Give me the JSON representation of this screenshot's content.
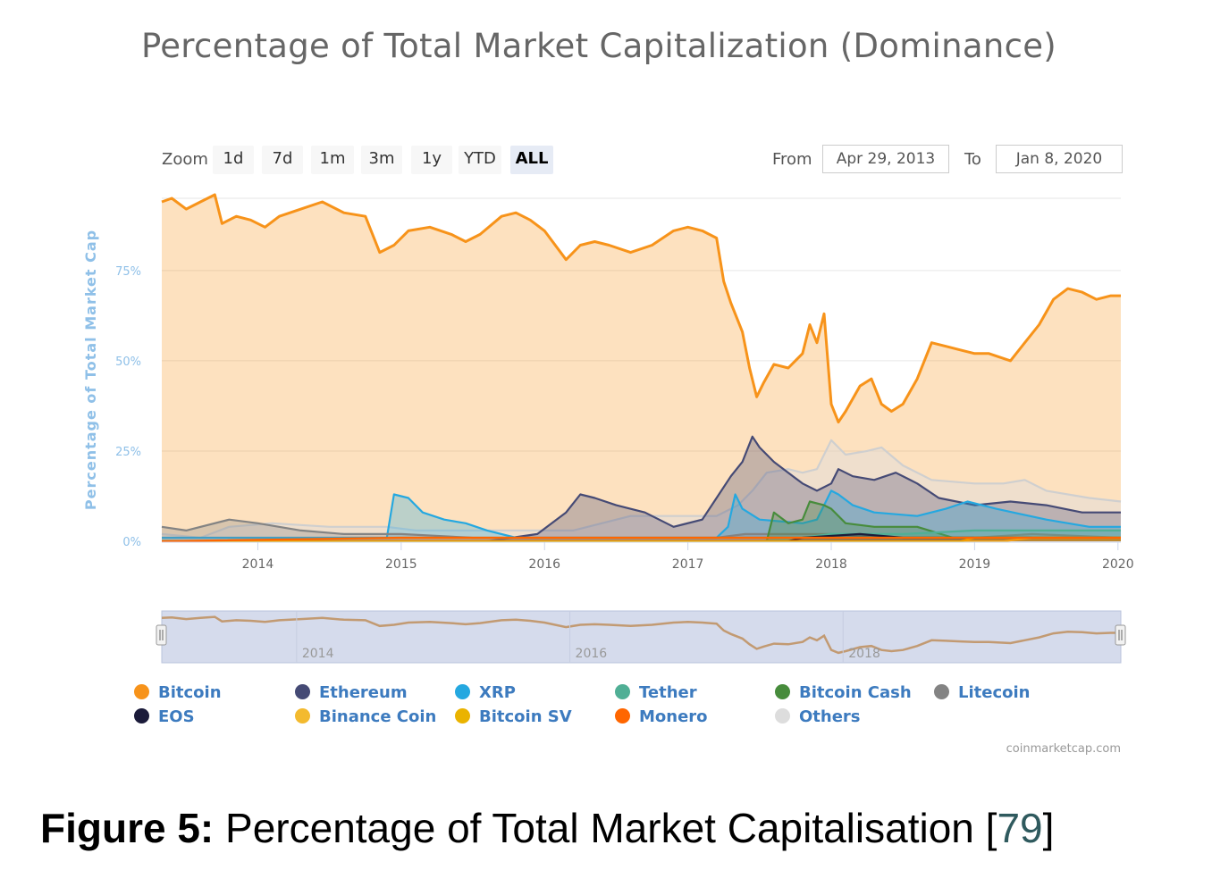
{
  "title": "Percentage of Total Market Capitalization (Dominance)",
  "toolbar": {
    "zoom_label": "Zoom",
    "buttons": [
      "1d",
      "7d",
      "1m",
      "3m",
      "1y",
      "YTD",
      "ALL"
    ],
    "active_button": "ALL",
    "from_label": "From",
    "from_value": "Apr 29, 2013",
    "to_label": "To",
    "to_value": "Jan 8, 2020"
  },
  "colors": {
    "Bitcoin": "#f7931a",
    "Ethereum": "#454a75",
    "XRP": "#25a8e0",
    "Tether": "#50af95",
    "Bitcoin Cash": "#478c3c",
    "Litecoin": "#838383",
    "EOS": "#1b1b3a",
    "Binance Coin": "#f3ba2f",
    "Bitcoin SV": "#eab300",
    "Monero": "#ff6600",
    "Others": "#dddddd"
  },
  "chart_data": {
    "type": "area",
    "title": "Percentage of Total Market Capitalization (Dominance)",
    "ylabel": "Percentage of Total Market Cap",
    "xlabel": "",
    "xlim": [
      2013.33,
      2020.02
    ],
    "ylim": [
      0,
      95
    ],
    "yticks": [
      0,
      25,
      50,
      75
    ],
    "ytick_labels": [
      "0%",
      "25%",
      "50%",
      "75%"
    ],
    "xticks": [
      2014,
      2015,
      2016,
      2017,
      2018,
      2019,
      2020
    ],
    "xtick_labels": [
      "2014",
      "2015",
      "2016",
      "2017",
      "2018",
      "2019",
      "2020"
    ],
    "legend": [
      "Bitcoin",
      "Ethereum",
      "XRP",
      "Tether",
      "Bitcoin Cash",
      "Litecoin",
      "EOS",
      "Binance Coin",
      "Bitcoin SV",
      "Monero",
      "Others"
    ],
    "legend_position": "bottom",
    "series": [
      {
        "name": "Bitcoin",
        "points": [
          [
            2013.33,
            94
          ],
          [
            2013.4,
            95
          ],
          [
            2013.5,
            92
          ],
          [
            2013.6,
            94
          ],
          [
            2013.7,
            96
          ],
          [
            2013.75,
            88
          ],
          [
            2013.85,
            90
          ],
          [
            2013.95,
            89
          ],
          [
            2014.05,
            87
          ],
          [
            2014.15,
            90
          ],
          [
            2014.3,
            92
          ],
          [
            2014.45,
            94
          ],
          [
            2014.6,
            91
          ],
          [
            2014.75,
            90
          ],
          [
            2014.85,
            80
          ],
          [
            2014.95,
            82
          ],
          [
            2015.05,
            86
          ],
          [
            2015.2,
            87
          ],
          [
            2015.35,
            85
          ],
          [
            2015.45,
            83
          ],
          [
            2015.55,
            85
          ],
          [
            2015.7,
            90
          ],
          [
            2015.8,
            91
          ],
          [
            2015.9,
            89
          ],
          [
            2016.0,
            86
          ],
          [
            2016.15,
            78
          ],
          [
            2016.25,
            82
          ],
          [
            2016.35,
            83
          ],
          [
            2016.45,
            82
          ],
          [
            2016.6,
            80
          ],
          [
            2016.75,
            82
          ],
          [
            2016.9,
            86
          ],
          [
            2017.0,
            87
          ],
          [
            2017.1,
            86
          ],
          [
            2017.2,
            84
          ],
          [
            2017.25,
            72
          ],
          [
            2017.3,
            66
          ],
          [
            2017.38,
            58
          ],
          [
            2017.43,
            48
          ],
          [
            2017.48,
            40
          ],
          [
            2017.53,
            44
          ],
          [
            2017.6,
            49
          ],
          [
            2017.7,
            48
          ],
          [
            2017.8,
            52
          ],
          [
            2017.85,
            60
          ],
          [
            2017.9,
            55
          ],
          [
            2017.95,
            63
          ],
          [
            2018.0,
            38
          ],
          [
            2018.05,
            33
          ],
          [
            2018.1,
            36
          ],
          [
            2018.2,
            43
          ],
          [
            2018.28,
            45
          ],
          [
            2018.35,
            38
          ],
          [
            2018.42,
            36
          ],
          [
            2018.5,
            38
          ],
          [
            2018.6,
            45
          ],
          [
            2018.7,
            55
          ],
          [
            2018.8,
            54
          ],
          [
            2018.9,
            53
          ],
          [
            2019.0,
            52
          ],
          [
            2019.1,
            52
          ],
          [
            2019.25,
            50
          ],
          [
            2019.35,
            55
          ],
          [
            2019.45,
            60
          ],
          [
            2019.55,
            67
          ],
          [
            2019.65,
            70
          ],
          [
            2019.75,
            69
          ],
          [
            2019.85,
            67
          ],
          [
            2019.95,
            68
          ],
          [
            2020.02,
            68
          ]
        ]
      },
      {
        "name": "Ethereum",
        "points": [
          [
            2013.33,
            0
          ],
          [
            2015.6,
            0
          ],
          [
            2015.95,
            2
          ],
          [
            2016.15,
            8
          ],
          [
            2016.25,
            13
          ],
          [
            2016.35,
            12
          ],
          [
            2016.5,
            10
          ],
          [
            2016.7,
            8
          ],
          [
            2016.9,
            4
          ],
          [
            2017.1,
            6
          ],
          [
            2017.2,
            12
          ],
          [
            2017.3,
            18
          ],
          [
            2017.38,
            22
          ],
          [
            2017.45,
            29
          ],
          [
            2017.5,
            26
          ],
          [
            2017.6,
            22
          ],
          [
            2017.7,
            19
          ],
          [
            2017.8,
            16
          ],
          [
            2017.9,
            14
          ],
          [
            2018.0,
            16
          ],
          [
            2018.05,
            20
          ],
          [
            2018.15,
            18
          ],
          [
            2018.3,
            17
          ],
          [
            2018.45,
            19
          ],
          [
            2018.6,
            16
          ],
          [
            2018.75,
            12
          ],
          [
            2019.0,
            10
          ],
          [
            2019.25,
            11
          ],
          [
            2019.5,
            10
          ],
          [
            2019.75,
            8
          ],
          [
            2020.02,
            8
          ]
        ]
      },
      {
        "name": "XRP",
        "points": [
          [
            2013.33,
            1
          ],
          [
            2014.9,
            1
          ],
          [
            2014.95,
            13
          ],
          [
            2015.05,
            12
          ],
          [
            2015.15,
            8
          ],
          [
            2015.3,
            6
          ],
          [
            2015.45,
            5
          ],
          [
            2015.6,
            3
          ],
          [
            2015.8,
            1
          ],
          [
            2016.5,
            1
          ],
          [
            2017.2,
            1
          ],
          [
            2017.28,
            4
          ],
          [
            2017.33,
            13
          ],
          [
            2017.38,
            9
          ],
          [
            2017.5,
            6
          ],
          [
            2017.8,
            5
          ],
          [
            2017.9,
            6
          ],
          [
            2018.0,
            14
          ],
          [
            2018.05,
            13
          ],
          [
            2018.15,
            10
          ],
          [
            2018.3,
            8
          ],
          [
            2018.6,
            7
          ],
          [
            2018.8,
            9
          ],
          [
            2018.95,
            11
          ],
          [
            2019.15,
            9
          ],
          [
            2019.5,
            6
          ],
          [
            2019.8,
            4
          ],
          [
            2020.02,
            4
          ]
        ]
      },
      {
        "name": "Tether",
        "points": [
          [
            2013.33,
            0
          ],
          [
            2017.5,
            0
          ],
          [
            2017.8,
            1
          ],
          [
            2018.0,
            2
          ],
          [
            2018.5,
            2
          ],
          [
            2019.0,
            3
          ],
          [
            2019.5,
            3
          ],
          [
            2020.02,
            3
          ]
        ]
      },
      {
        "name": "Bitcoin Cash",
        "points": [
          [
            2013.33,
            0
          ],
          [
            2017.55,
            0
          ],
          [
            2017.6,
            8
          ],
          [
            2017.7,
            5
          ],
          [
            2017.8,
            6
          ],
          [
            2017.85,
            11
          ],
          [
            2017.95,
            10
          ],
          [
            2018.0,
            9
          ],
          [
            2018.1,
            5
          ],
          [
            2018.3,
            4
          ],
          [
            2018.6,
            4
          ],
          [
            2018.85,
            1
          ],
          [
            2019.2,
            1
          ],
          [
            2020.02,
            1
          ]
        ]
      },
      {
        "name": "Litecoin",
        "points": [
          [
            2013.33,
            4
          ],
          [
            2013.5,
            3
          ],
          [
            2013.8,
            6
          ],
          [
            2014.0,
            5
          ],
          [
            2014.3,
            3
          ],
          [
            2014.6,
            2
          ],
          [
            2015.0,
            2
          ],
          [
            2015.5,
            1
          ],
          [
            2016.0,
            1
          ],
          [
            2016.5,
            1
          ],
          [
            2017.2,
            1
          ],
          [
            2017.4,
            2
          ],
          [
            2017.8,
            2
          ],
          [
            2018.0,
            2
          ],
          [
            2018.5,
            1
          ],
          [
            2019.0,
            1
          ],
          [
            2019.4,
            2
          ],
          [
            2020.02,
            1
          ]
        ]
      },
      {
        "name": "EOS",
        "points": [
          [
            2013.33,
            0
          ],
          [
            2017.7,
            0
          ],
          [
            2017.8,
            1
          ],
          [
            2018.2,
            2
          ],
          [
            2018.5,
            1
          ],
          [
            2019.0,
            1
          ],
          [
            2020.02,
            1
          ]
        ]
      },
      {
        "name": "Binance Coin",
        "points": [
          [
            2013.33,
            0
          ],
          [
            2019.2,
            0
          ],
          [
            2019.4,
            1
          ],
          [
            2020.02,
            1
          ]
        ]
      },
      {
        "name": "Bitcoin SV",
        "points": [
          [
            2013.33,
            0
          ],
          [
            2018.9,
            0
          ],
          [
            2019.0,
            1
          ],
          [
            2019.5,
            1
          ],
          [
            2020.02,
            1
          ]
        ]
      },
      {
        "name": "Monero",
        "points": [
          [
            2013.33,
            0
          ],
          [
            2015.0,
            1
          ],
          [
            2017.0,
            1
          ],
          [
            2018.0,
            1
          ],
          [
            2019.0,
            1
          ],
          [
            2020.02,
            1
          ]
        ]
      },
      {
        "name": "Others",
        "points": [
          [
            2013.33,
            2
          ],
          [
            2013.6,
            1
          ],
          [
            2013.8,
            4
          ],
          [
            2014.1,
            5
          ],
          [
            2014.5,
            4
          ],
          [
            2014.9,
            4
          ],
          [
            2015.1,
            3
          ],
          [
            2015.5,
            3
          ],
          [
            2015.9,
            3
          ],
          [
            2016.2,
            3
          ],
          [
            2016.6,
            7
          ],
          [
            2016.9,
            7
          ],
          [
            2017.2,
            7
          ],
          [
            2017.35,
            10
          ],
          [
            2017.45,
            14
          ],
          [
            2017.55,
            19
          ],
          [
            2017.7,
            20
          ],
          [
            2017.8,
            19
          ],
          [
            2017.9,
            20
          ],
          [
            2018.0,
            28
          ],
          [
            2018.1,
            24
          ],
          [
            2018.25,
            25
          ],
          [
            2018.35,
            26
          ],
          [
            2018.5,
            21
          ],
          [
            2018.7,
            17
          ],
          [
            2019.0,
            16
          ],
          [
            2019.2,
            16
          ],
          [
            2019.35,
            17
          ],
          [
            2019.5,
            14
          ],
          [
            2019.8,
            12
          ],
          [
            2020.02,
            11
          ]
        ]
      }
    ],
    "navigator": {
      "labels": [
        "2014",
        "2016",
        "2018"
      ],
      "label_years": [
        2014,
        2016,
        2018
      ]
    }
  },
  "credit": "coinmarketcap.com",
  "caption": {
    "label": "Figure 5:",
    "text": "Percentage of Total Market Capitalisation [",
    "ref": "79",
    "close": "]"
  }
}
